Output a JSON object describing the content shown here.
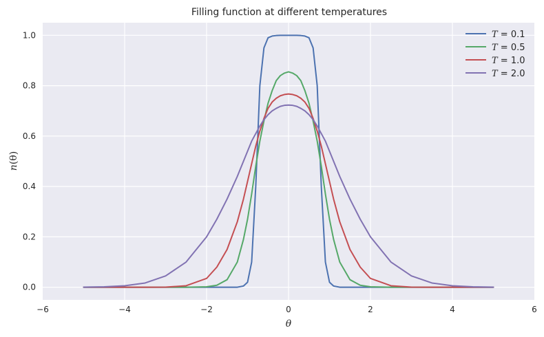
{
  "chart_data": {
    "type": "line",
    "title": "Filling function at different temperatures",
    "xlabel": "θ",
    "ylabel_main": "n",
    "ylabel_arg": "(θ)",
    "xlim": [
      -6,
      6
    ],
    "ylim": [
      -0.05,
      1.05
    ],
    "xticks": [
      -6,
      -4,
      -2,
      0,
      2,
      4,
      6
    ],
    "xtick_labels": [
      "−6",
      "−4",
      "−2",
      "0",
      "2",
      "4",
      "6"
    ],
    "yticks": [
      0.0,
      0.2,
      0.4,
      0.6,
      0.8,
      1.0
    ],
    "ytick_labels": [
      "0.0",
      "0.2",
      "0.4",
      "0.6",
      "0.8",
      "1.0"
    ],
    "grid": true,
    "legend_position": "top-right",
    "x": [
      -5,
      -4.5,
      -4,
      -3.5,
      -3,
      -2.5,
      -2,
      -1.75,
      -1.5,
      -1.25,
      -1.1,
      -1,
      -0.9,
      -0.8,
      -0.7,
      -0.6,
      -0.5,
      -0.4,
      -0.3,
      -0.2,
      -0.1,
      0,
      0.1,
      0.2,
      0.3,
      0.4,
      0.5,
      0.6,
      0.7,
      0.8,
      0.9,
      1,
      1.1,
      1.25,
      1.5,
      1.75,
      2,
      2.5,
      3,
      3.5,
      4,
      4.5,
      5
    ],
    "series": [
      {
        "name": "T = 0.1",
        "legend_var": "T",
        "legend_value": "= 0.1",
        "color": "#4c72b0",
        "values": [
          0,
          0,
          0,
          0,
          0,
          0,
          0,
          0,
          0,
          0.0003,
          0.005,
          0.02,
          0.1,
          0.4,
          0.8,
          0.95,
          0.99,
          0.997,
          0.999,
          1.0,
          1.0,
          1.0,
          1.0,
          1.0,
          0.999,
          0.997,
          0.99,
          0.95,
          0.8,
          0.4,
          0.1,
          0.02,
          0.005,
          0.0003,
          0,
          0,
          0,
          0,
          0,
          0,
          0,
          0,
          0
        ]
      },
      {
        "name": "T = 0.5",
        "legend_var": "T",
        "legend_value": "= 0.5",
        "color": "#55a868",
        "values": [
          0,
          0,
          0,
          0,
          0,
          0.0001,
          0.002,
          0.008,
          0.03,
          0.1,
          0.19,
          0.27,
          0.37,
          0.48,
          0.58,
          0.66,
          0.73,
          0.78,
          0.82,
          0.84,
          0.85,
          0.855,
          0.85,
          0.84,
          0.82,
          0.78,
          0.73,
          0.66,
          0.58,
          0.48,
          0.37,
          0.27,
          0.19,
          0.1,
          0.03,
          0.008,
          0.002,
          0.0001,
          0,
          0,
          0,
          0,
          0
        ]
      },
      {
        "name": "T = 1.0",
        "legend_var": "T",
        "legend_value": "= 1.0",
        "color": "#c44e52",
        "values": [
          0,
          0,
          0,
          0,
          0.0005,
          0.006,
          0.035,
          0.08,
          0.15,
          0.26,
          0.35,
          0.42,
          0.49,
          0.56,
          0.62,
          0.67,
          0.71,
          0.735,
          0.75,
          0.76,
          0.765,
          0.767,
          0.765,
          0.76,
          0.75,
          0.735,
          0.71,
          0.67,
          0.62,
          0.56,
          0.49,
          0.42,
          0.35,
          0.26,
          0.15,
          0.08,
          0.035,
          0.006,
          0.0005,
          0,
          0,
          0,
          0
        ]
      },
      {
        "name": "T = 2.0",
        "legend_var": "T",
        "legend_value": "= 2.0",
        "color": "#8172b2",
        "values": [
          0.0005,
          0.002,
          0.006,
          0.017,
          0.045,
          0.1,
          0.2,
          0.27,
          0.35,
          0.44,
          0.5,
          0.54,
          0.58,
          0.61,
          0.64,
          0.665,
          0.685,
          0.7,
          0.71,
          0.718,
          0.722,
          0.723,
          0.722,
          0.718,
          0.71,
          0.7,
          0.685,
          0.665,
          0.64,
          0.61,
          0.58,
          0.54,
          0.5,
          0.44,
          0.35,
          0.27,
          0.2,
          0.1,
          0.045,
          0.017,
          0.006,
          0.002,
          0.0005
        ]
      }
    ]
  }
}
